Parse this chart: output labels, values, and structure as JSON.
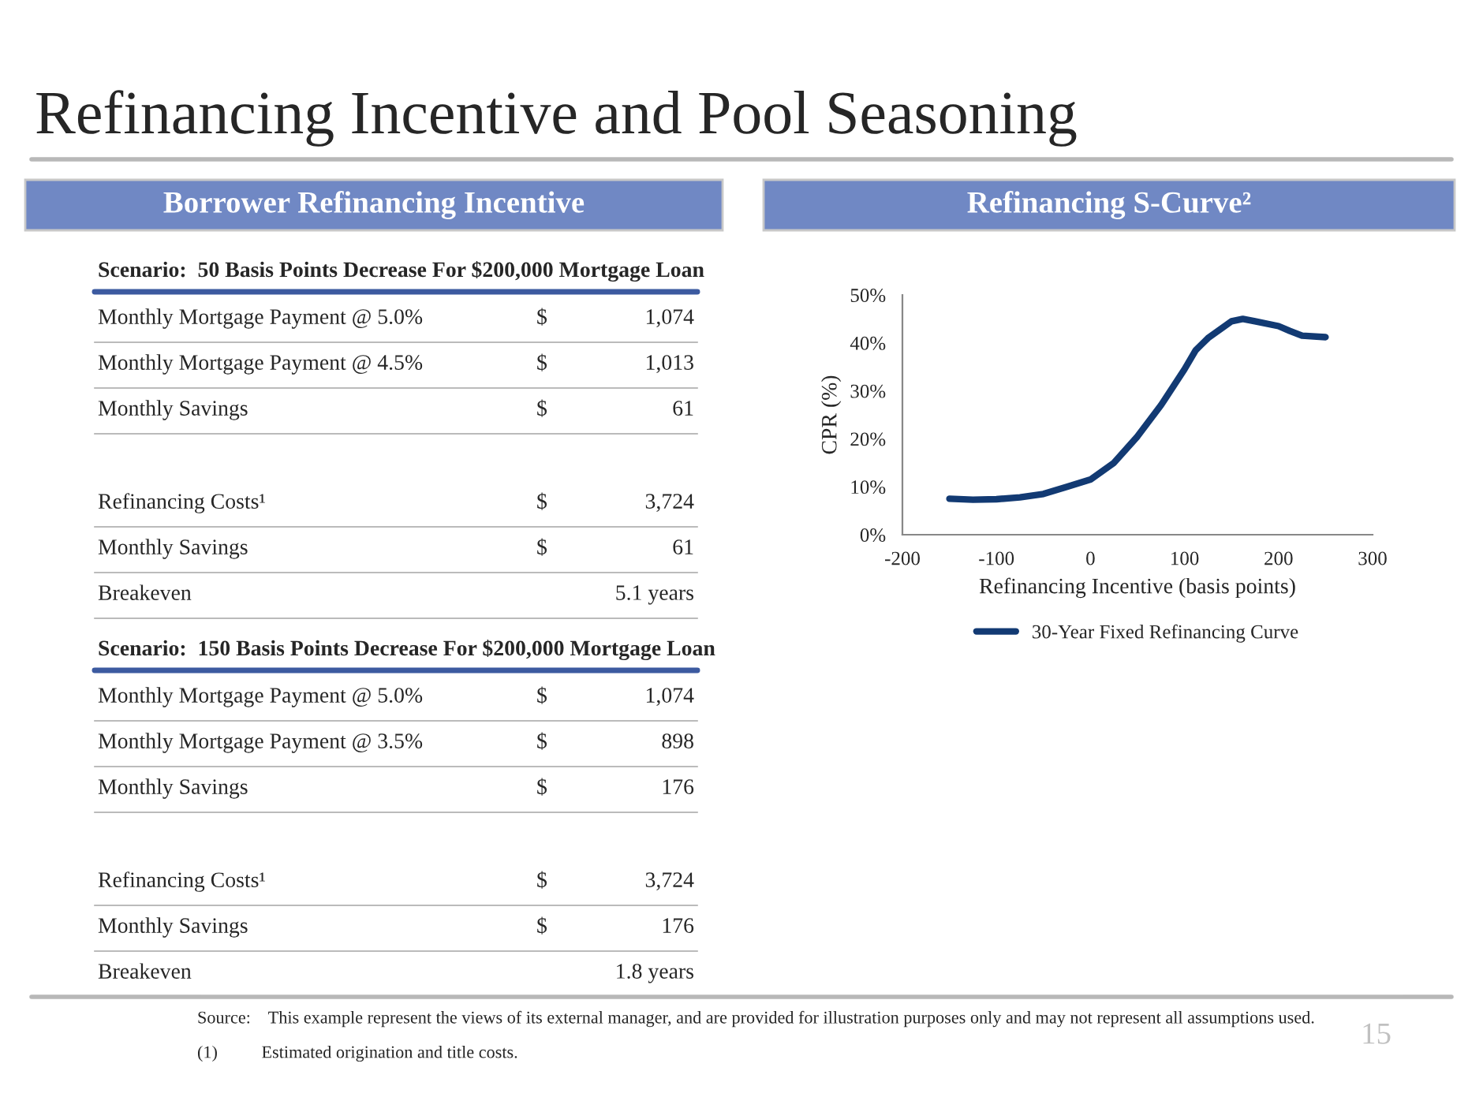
{
  "chart_data": [
    {
      "type": "other",
      "title": "Refinancing Incentive and Pool Seasoning",
      "subtitle": "Borrower Refinancing Incentive",
      "annotations": [
        "Scenario:  50 Basis Points Decrease For $200,000 Mortgage Loan",
        "Monthly Mortgage Payment @ 5.0%",
        "$ 1,074",
        "Monthly Mortgage Payment @ 4.5%",
        "$ 1,013",
        "Monthly Savings",
        "$ 61",
        "Refinancing Costs¹",
        "$ 3,724",
        "Monthly Savings",
        "$ 61",
        "Breakeven",
        "5.1 years",
        "Scenario:  150 Basis Points Decrease For $200,000 Mortgage Loan",
        "Monthly Mortgage Payment @ 5.0%",
        "$ 1,074",
        "Monthly Mortgage Payment @ 3.5%",
        "$ 898",
        "Monthly Savings",
        "$ 176",
        "Refinancing Costs¹",
        "$ 3,724",
        "Monthly Savings",
        "$ 176",
        "Breakeven",
        "1.8 years"
      ]
    },
    {
      "type": "line",
      "title": "Refinancing S-Curve²",
      "xlabel": "Refinancing Incentive (basis points)",
      "ylabel": "CPR (%)",
      "x": [
        -150,
        -125,
        -100,
        -75,
        -50,
        -25,
        0,
        25,
        50,
        75,
        100,
        112,
        125,
        150,
        162,
        175,
        200,
        212,
        225,
        250
      ],
      "series": [
        {
          "name": "30-Year Fixed Refinancing Curve",
          "color": "#123a73",
          "values": [
            7.5,
            7.3,
            7.4,
            7.8,
            8.5,
            10,
            11.5,
            15,
            20.5,
            27,
            34.5,
            38.5,
            41,
            44.5,
            45,
            44.5,
            43.5,
            42.5,
            41.5,
            41.2
          ]
        }
      ],
      "xlim": [
        -200,
        300
      ],
      "xticks": [
        -200,
        -100,
        0,
        100,
        200,
        300
      ],
      "ylim": [
        0,
        50
      ],
      "yticks": [
        {
          "value": 0,
          "label": "0%"
        },
        {
          "value": 10,
          "label": "10%"
        },
        {
          "value": 20,
          "label": "20%"
        },
        {
          "value": 30,
          "label": "30%"
        },
        {
          "value": 40,
          "label": "40%"
        },
        {
          "value": 50,
          "label": "50%"
        }
      ],
      "grid": false,
      "legend": "bottom",
      "marker": "none",
      "line_style": "solid",
      "annotations": [
        "Source:    This example represent the views of its external manager, and are provided for illustration purposes only and may not represent all assumptions used.",
        "(1)          Estimated origination and title costs.",
        "15"
      ]
    }
  ]
}
